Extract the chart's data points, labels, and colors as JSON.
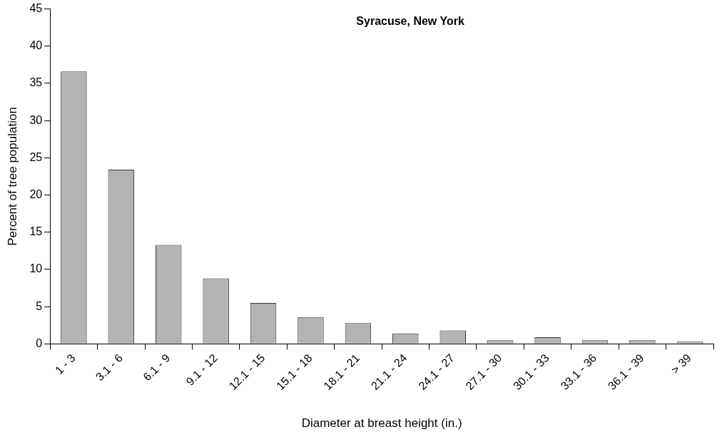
{
  "chart_data": {
    "type": "bar",
    "title": "Syracuse, New York",
    "xlabel": "Diameter at breast height (in.)",
    "ylabel": "Percent of tree population",
    "categories": [
      "1 - 3",
      "3.1 - 6",
      "6.1 - 9",
      "9.1 - 12",
      "12.1 - 15",
      "15.1 - 18",
      "18.1 - 21",
      "21.1 - 24",
      "24.1 - 27",
      "27.1 - 30",
      "30.1 - 33",
      "33.1 - 36",
      "36.1 - 39",
      "> 39"
    ],
    "values": [
      36.6,
      23.4,
      13.3,
      8.8,
      5.5,
      3.6,
      2.8,
      1.4,
      1.8,
      0.5,
      0.9,
      0.5,
      0.5,
      0.3
    ],
    "color": "#b3b3b3",
    "ylim": [
      0,
      45
    ],
    "yticks": [
      0,
      5,
      10,
      15,
      20,
      25,
      30,
      35,
      40,
      45
    ],
    "grid": false,
    "legend": false
  }
}
